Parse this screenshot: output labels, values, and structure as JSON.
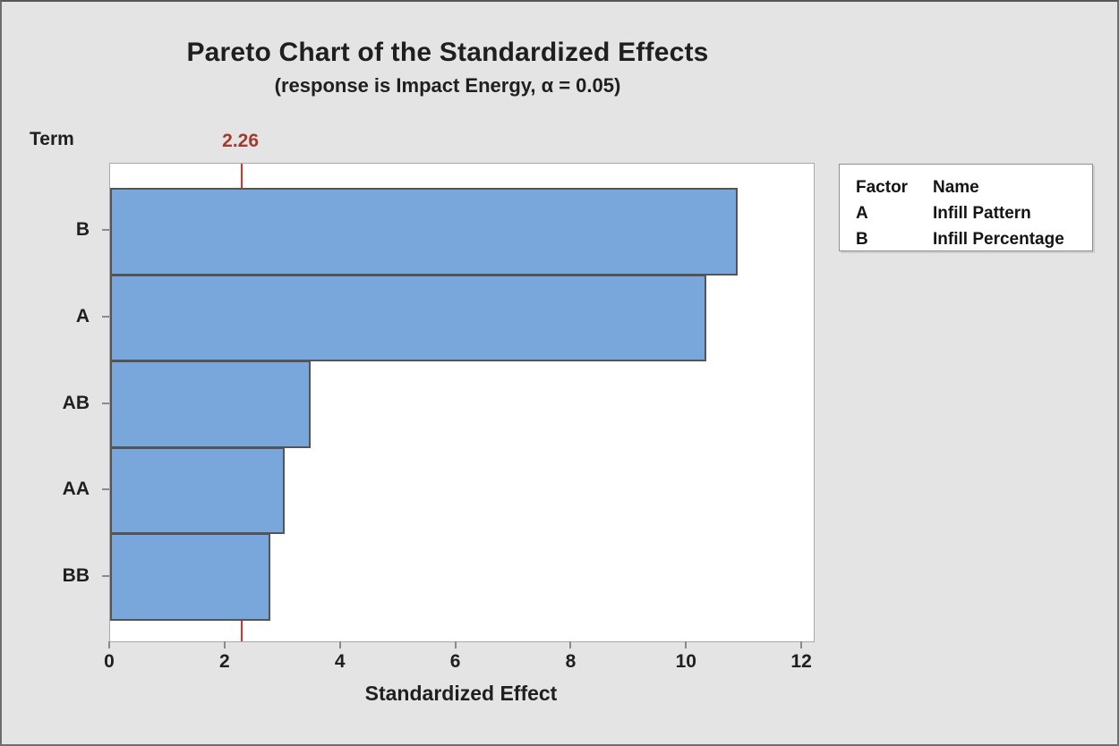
{
  "title": "Pareto Chart of the Standardized Effects",
  "subtitle": "(response is Impact Energy, α = 0.05)",
  "y_axis_title": "Term",
  "x_axis_title": "Standardized Effect",
  "reference_line": {
    "value": 2.26,
    "label": "2.26",
    "line_color": "#e03222",
    "label_color": "#a23a30"
  },
  "legend": {
    "header": {
      "factor": "Factor",
      "name": "Name"
    },
    "rows": [
      {
        "factor": "A",
        "name": "Infill Pattern"
      },
      {
        "factor": "B",
        "name": "Infill Percentage"
      }
    ]
  },
  "colors": {
    "background": "#e4e4e4",
    "bar_fill": "#7aa7db",
    "bar_border": "#545454",
    "plot_border": "#a9a9a9",
    "text": "#1f1f1f"
  },
  "chart_data": {
    "type": "bar",
    "orientation": "horizontal",
    "title": "Pareto Chart of the Standardized Effects",
    "subtitle": "(response is Impact Energy, α = 0.05)",
    "xlabel": "Standardized Effect",
    "ylabel": "Term",
    "categories": [
      "B",
      "A",
      "AB",
      "AA",
      "BB"
    ],
    "values": [
      10.88,
      10.34,
      3.48,
      3.02,
      2.78
    ],
    "x_ticks": [
      0,
      2,
      4,
      6,
      8,
      10,
      12
    ],
    "xlim": [
      0,
      12.2
    ],
    "reference_line": 2.26,
    "grid": false,
    "legend_position": "right"
  }
}
